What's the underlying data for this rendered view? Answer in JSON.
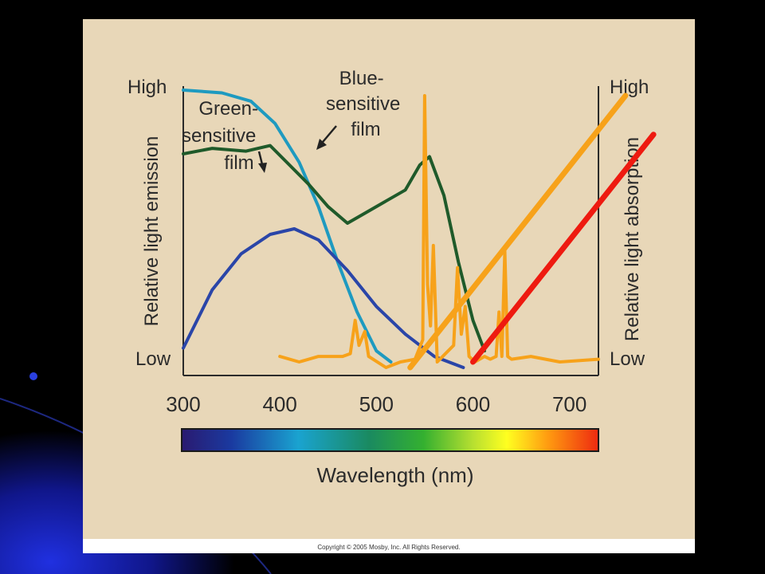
{
  "slide": {
    "copyright": "Copyright © 2005 Mosby, Inc. All Rights Reserved.",
    "background_colors": {
      "slide": "#000000",
      "swirl": "#1a2ad8",
      "panel": "#e8d7b8"
    }
  },
  "chart_data": {
    "type": "line",
    "title": "",
    "xlabel": "Wavelength (nm)",
    "ylabel_left": "Relative light emission",
    "ylabel_right": "Relative light absorption",
    "xlim": [
      300,
      730
    ],
    "ylim": [
      0,
      1
    ],
    "x_ticks": [
      300,
      400,
      500,
      600,
      700
    ],
    "y_left_ticks": [
      "Low",
      "High"
    ],
    "y_right_ticks": [
      "Low",
      "High"
    ],
    "annotations": [
      {
        "text": [
          "Blue-",
          "sensitive",
          "film"
        ]
      },
      {
        "text": [
          "Green-",
          "sensitive",
          "film"
        ]
      }
    ],
    "series": [
      {
        "color": "#1e9ac0",
        "width": 4,
        "points": [
          [
            300,
            1.0
          ],
          [
            340,
            0.99
          ],
          [
            370,
            0.96
          ],
          [
            395,
            0.88
          ],
          [
            420,
            0.74
          ],
          [
            440,
            0.58
          ],
          [
            460,
            0.38
          ],
          [
            480,
            0.2
          ],
          [
            500,
            0.06
          ],
          [
            515,
            0.02
          ]
        ]
      },
      {
        "color": "#1f5a2a",
        "width": 4,
        "points": [
          [
            300,
            0.77
          ],
          [
            330,
            0.79
          ],
          [
            365,
            0.78
          ],
          [
            390,
            0.8
          ],
          [
            410,
            0.73
          ],
          [
            430,
            0.66
          ],
          [
            450,
            0.58
          ],
          [
            470,
            0.52
          ],
          [
            490,
            0.56
          ],
          [
            510,
            0.6
          ],
          [
            530,
            0.64
          ],
          [
            545,
            0.73
          ],
          [
            555,
            0.76
          ],
          [
            570,
            0.62
          ],
          [
            585,
            0.38
          ],
          [
            600,
            0.17
          ],
          [
            612,
            0.06
          ]
        ]
      },
      {
        "color": "#2a45a8",
        "width": 4,
        "points": [
          [
            300,
            0.07
          ],
          [
            330,
            0.28
          ],
          [
            360,
            0.41
          ],
          [
            390,
            0.48
          ],
          [
            415,
            0.5
          ],
          [
            440,
            0.46
          ],
          [
            470,
            0.35
          ],
          [
            500,
            0.22
          ],
          [
            530,
            0.12
          ],
          [
            560,
            0.04
          ],
          [
            590,
            0.0
          ]
        ]
      },
      {
        "color": "#f7a21a",
        "width": 4,
        "points": [
          [
            400,
            0.04
          ],
          [
            420,
            0.02
          ],
          [
            440,
            0.04
          ],
          [
            465,
            0.04
          ],
          [
            473,
            0.05
          ],
          [
            478,
            0.17
          ],
          [
            482,
            0.08
          ],
          [
            488,
            0.13
          ],
          [
            492,
            0.04
          ],
          [
            510,
            0.0
          ],
          [
            525,
            0.02
          ],
          [
            540,
            0.03
          ],
          [
            548,
            0.1
          ],
          [
            550,
            0.98
          ],
          [
            553,
            0.3
          ],
          [
            556,
            0.15
          ],
          [
            559,
            0.44
          ],
          [
            563,
            0.02
          ],
          [
            580,
            0.08
          ],
          [
            584,
            0.36
          ],
          [
            588,
            0.12
          ],
          [
            592,
            0.22
          ],
          [
            596,
            0.04
          ],
          [
            602,
            0.02
          ],
          [
            612,
            0.04
          ],
          [
            618,
            0.03
          ],
          [
            624,
            0.04
          ],
          [
            627,
            0.2
          ],
          [
            630,
            0.04
          ],
          [
            633,
            0.42
          ],
          [
            636,
            0.04
          ],
          [
            640,
            0.03
          ],
          [
            660,
            0.04
          ],
          [
            690,
            0.02
          ],
          [
            730,
            0.03
          ]
        ]
      },
      {
        "color": "#f7a21a",
        "width": 7,
        "points": [
          [
            535,
            0.0
          ],
          [
            758,
            0.98
          ]
        ]
      },
      {
        "color": "#ee1a10",
        "width": 7,
        "points": [
          [
            600,
            0.02
          ],
          [
            787,
            0.84
          ]
        ]
      }
    ]
  }
}
